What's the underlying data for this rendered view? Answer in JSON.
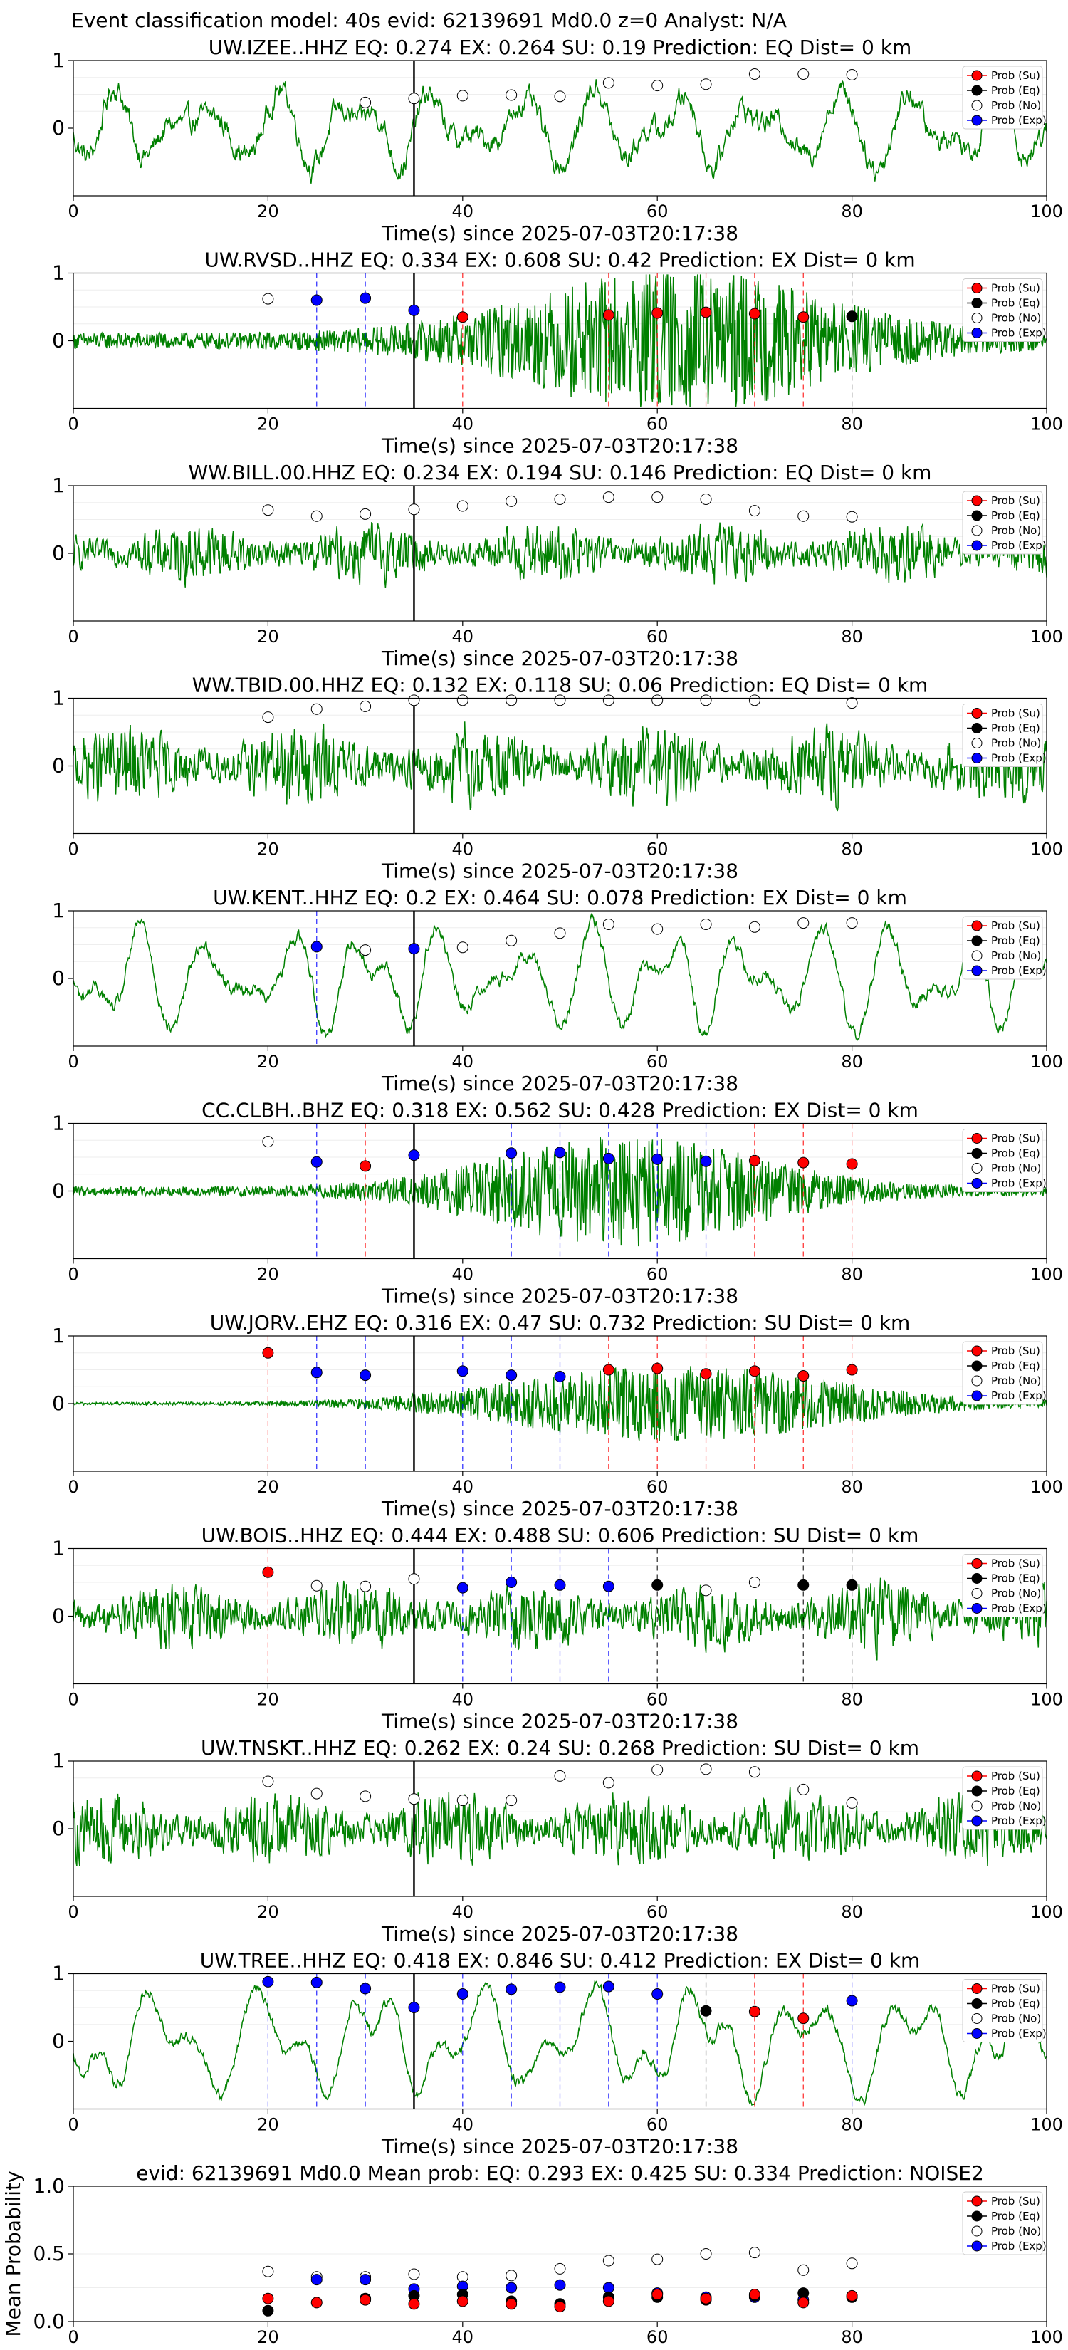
{
  "suptitle": "Event classification model: 40s evid: 62139691 Md0.0 z=0 Analyst: N/A",
  "xlabel": "Time(s) since 2025-07-03T20:17:38",
  "legend": [
    "Prob (Su)",
    "Prob (Eq)",
    "Prob (No)",
    "Prob (Exp)"
  ],
  "colors": {
    "su": "#ff0000",
    "eq": "#000000",
    "no": "#ffffff",
    "exp": "#0000ff",
    "trace": "#008000"
  },
  "chart_data": [
    {
      "type": "line",
      "title": "UW.IZEE..HHZ   EQ: 0.274  EX: 0.264  SU: 0.19    Prediction: EQ    Dist= 0 km",
      "xlim": [
        0,
        100
      ],
      "xticks": [
        0,
        20,
        40,
        60,
        80,
        100
      ],
      "ylim": [
        -1,
        1
      ],
      "yticks": [
        0,
        1
      ],
      "arrival": 35,
      "wave": {
        "style": "osc",
        "amp": 0.55,
        "noise": 0.2
      },
      "points": [
        [
          30,
          "no",
          0.38
        ],
        [
          35,
          "no",
          0.44
        ],
        [
          40,
          "no",
          0.48
        ],
        [
          45,
          "no",
          0.49
        ],
        [
          50,
          "no",
          0.47
        ],
        [
          55,
          "no",
          0.67
        ],
        [
          60,
          "no",
          0.63
        ],
        [
          65,
          "no",
          0.65
        ],
        [
          70,
          "no",
          0.8
        ],
        [
          75,
          "no",
          0.8
        ],
        [
          80,
          "no",
          0.79
        ]
      ]
    },
    {
      "type": "line",
      "title": "UW.RVSD..HHZ   EQ: 0.334  EX: 0.608  SU: 0.42   Prediction: EX    Dist= 0 km",
      "xlim": [
        0,
        100
      ],
      "xticks": [
        0,
        20,
        40,
        60,
        80,
        100
      ],
      "ylim": [
        -1,
        1
      ],
      "yticks": [
        0,
        1
      ],
      "arrival": 35,
      "wave": {
        "style": "burst",
        "amp": 0.12,
        "peak": 62,
        "width": 20,
        "peakAmp": 0.95
      },
      "points": [
        [
          20,
          "no",
          0.62
        ],
        [
          25,
          "exp",
          0.6
        ],
        [
          30,
          "exp",
          0.63
        ],
        [
          35,
          "exp",
          0.45
        ],
        [
          40,
          "su",
          0.35
        ],
        [
          55,
          "su",
          0.38
        ],
        [
          60,
          "su",
          0.41
        ],
        [
          65,
          "su",
          0.42
        ],
        [
          70,
          "su",
          0.4
        ],
        [
          75,
          "su",
          0.35
        ],
        [
          80,
          "eq",
          0.36
        ]
      ]
    },
    {
      "type": "line",
      "title": "WW.BILL.00.HHZ   EQ: 0.234  EX: 0.194  SU: 0.146   Prediction: EQ    Dist= 0 km",
      "xlim": [
        0,
        100
      ],
      "xticks": [
        0,
        20,
        40,
        60,
        80,
        100
      ],
      "ylim": [
        -1,
        1
      ],
      "yticks": [
        0,
        1
      ],
      "arrival": 35,
      "wave": {
        "style": "noise",
        "amp": 0.6
      },
      "points": [
        [
          20,
          "no",
          0.64
        ],
        [
          25,
          "no",
          0.55
        ],
        [
          30,
          "no",
          0.58
        ],
        [
          35,
          "no",
          0.65
        ],
        [
          40,
          "no",
          0.7
        ],
        [
          45,
          "no",
          0.77
        ],
        [
          50,
          "no",
          0.8
        ],
        [
          55,
          "no",
          0.83
        ],
        [
          60,
          "no",
          0.83
        ],
        [
          65,
          "no",
          0.8
        ],
        [
          70,
          "no",
          0.63
        ],
        [
          75,
          "no",
          0.55
        ],
        [
          80,
          "no",
          0.54
        ]
      ]
    },
    {
      "type": "line",
      "title": "WW.TBID.00.HHZ   EQ: 0.132  EX: 0.118  SU: 0.06    Prediction: EQ    Dist= 0 km",
      "xlim": [
        0,
        100
      ],
      "xticks": [
        0,
        20,
        40,
        60,
        80,
        100
      ],
      "ylim": [
        -1,
        1
      ],
      "yticks": [
        0,
        1
      ],
      "arrival": 35,
      "wave": {
        "style": "noise",
        "amp": 0.8
      },
      "points": [
        [
          20,
          "no",
          0.72
        ],
        [
          25,
          "no",
          0.84
        ],
        [
          30,
          "no",
          0.88
        ],
        [
          35,
          "no",
          0.97
        ],
        [
          40,
          "no",
          0.97
        ],
        [
          45,
          "no",
          0.97
        ],
        [
          50,
          "no",
          0.97
        ],
        [
          55,
          "no",
          0.97
        ],
        [
          60,
          "no",
          0.97
        ],
        [
          65,
          "no",
          0.97
        ],
        [
          70,
          "no",
          0.97
        ],
        [
          80,
          "no",
          0.93
        ]
      ]
    },
    {
      "type": "line",
      "title": "UW.KENT..HHZ   EQ: 0.2  EX: 0.464  SU: 0.078   Prediction: EX    Dist= 0 km",
      "xlim": [
        0,
        100
      ],
      "xticks": [
        0,
        20,
        40,
        60,
        80,
        100
      ],
      "ylim": [
        -1,
        1
      ],
      "yticks": [
        0,
        1
      ],
      "arrival": 35,
      "wave": {
        "style": "osc",
        "amp": 0.75,
        "noise": 0.12
      },
      "points": [
        [
          25,
          "exp",
          0.47
        ],
        [
          30,
          "no",
          0.42
        ],
        [
          35,
          "exp",
          0.44
        ],
        [
          40,
          "no",
          0.46
        ],
        [
          45,
          "no",
          0.56
        ],
        [
          50,
          "no",
          0.67
        ],
        [
          55,
          "no",
          0.8
        ],
        [
          60,
          "no",
          0.73
        ],
        [
          65,
          "no",
          0.8
        ],
        [
          70,
          "no",
          0.76
        ],
        [
          75,
          "no",
          0.82
        ],
        [
          80,
          "no",
          0.82
        ]
      ]
    },
    {
      "type": "line",
      "title": "CC.CLBH..BHZ   EQ: 0.318  EX: 0.562  SU: 0.428   Prediction: EX    Dist= 0 km",
      "xlim": [
        0,
        100
      ],
      "xticks": [
        0,
        20,
        40,
        60,
        80,
        100
      ],
      "ylim": [
        -1,
        1
      ],
      "yticks": [
        0,
        1
      ],
      "arrival": 35,
      "wave": {
        "style": "burst",
        "amp": 0.07,
        "peak": 57,
        "width": 18,
        "peakAmp": 0.75
      },
      "points": [
        [
          20,
          "no",
          0.73
        ],
        [
          25,
          "exp",
          0.43
        ],
        [
          30,
          "su",
          0.37
        ],
        [
          35,
          "exp",
          0.53
        ],
        [
          45,
          "exp",
          0.56
        ],
        [
          50,
          "exp",
          0.57
        ],
        [
          55,
          "exp",
          0.48
        ],
        [
          60,
          "exp",
          0.47
        ],
        [
          65,
          "exp",
          0.44
        ],
        [
          70,
          "su",
          0.45
        ],
        [
          75,
          "su",
          0.42
        ],
        [
          80,
          "su",
          0.4
        ]
      ]
    },
    {
      "type": "line",
      "title": "UW.JORV..EHZ   EQ: 0.316  EX: 0.47  SU: 0.732   Prediction: SU    Dist= 0 km",
      "xlim": [
        0,
        100
      ],
      "xticks": [
        0,
        20,
        40,
        60,
        80,
        100
      ],
      "ylim": [
        -1,
        1
      ],
      "yticks": [
        0,
        1
      ],
      "arrival": 35,
      "wave": {
        "style": "burst",
        "amp": 0.02,
        "peak": 62,
        "width": 22,
        "peakAmp": 0.55
      },
      "points": [
        [
          20,
          "su",
          0.75
        ],
        [
          25,
          "exp",
          0.46
        ],
        [
          30,
          "exp",
          0.42
        ],
        [
          40,
          "exp",
          0.48
        ],
        [
          45,
          "exp",
          0.42
        ],
        [
          50,
          "exp",
          0.4
        ],
        [
          55,
          "su",
          0.5
        ],
        [
          60,
          "su",
          0.52
        ],
        [
          65,
          "su",
          0.44
        ],
        [
          70,
          "su",
          0.48
        ],
        [
          75,
          "su",
          0.41
        ],
        [
          80,
          "su",
          0.5
        ]
      ]
    },
    {
      "type": "line",
      "title": "UW.BOIS..HHZ   EQ: 0.444  EX: 0.488  SU: 0.606   Prediction: SU    Dist= 0 km",
      "xlim": [
        0,
        100
      ],
      "xticks": [
        0,
        20,
        40,
        60,
        80,
        100
      ],
      "ylim": [
        -1,
        1
      ],
      "yticks": [
        0,
        1
      ],
      "arrival": 35,
      "wave": {
        "style": "noise",
        "amp": 0.7
      },
      "points": [
        [
          20,
          "su",
          0.65
        ],
        [
          25,
          "no",
          0.45
        ],
        [
          30,
          "no",
          0.44
        ],
        [
          35,
          "no",
          0.55
        ],
        [
          40,
          "exp",
          0.42
        ],
        [
          45,
          "exp",
          0.5
        ],
        [
          50,
          "exp",
          0.46
        ],
        [
          55,
          "exp",
          0.44
        ],
        [
          60,
          "eq",
          0.46
        ],
        [
          65,
          "no",
          0.38
        ],
        [
          70,
          "no",
          0.5
        ],
        [
          75,
          "eq",
          0.46
        ],
        [
          80,
          "eq",
          0.46
        ]
      ]
    },
    {
      "type": "line",
      "title": "UW.TNSKT..HHZ   EQ: 0.262  EX: 0.24  SU: 0.268   Prediction: SU    Dist= 0 km",
      "xlim": [
        0,
        100
      ],
      "xticks": [
        0,
        20,
        40,
        60,
        80,
        100
      ],
      "ylim": [
        -1,
        1
      ],
      "yticks": [
        0,
        1
      ],
      "arrival": 35,
      "wave": {
        "style": "noise",
        "amp": 0.75
      },
      "points": [
        [
          20,
          "no",
          0.7
        ],
        [
          25,
          "no",
          0.52
        ],
        [
          30,
          "no",
          0.48
        ],
        [
          35,
          "no",
          0.44
        ],
        [
          40,
          "no",
          0.42
        ],
        [
          45,
          "no",
          0.42
        ],
        [
          50,
          "no",
          0.78
        ],
        [
          55,
          "no",
          0.68
        ],
        [
          60,
          "no",
          0.87
        ],
        [
          65,
          "no",
          0.88
        ],
        [
          70,
          "no",
          0.84
        ],
        [
          75,
          "no",
          0.58
        ],
        [
          80,
          "no",
          0.38
        ]
      ]
    },
    {
      "type": "line",
      "title": "UW.TREE..HHZ   EQ: 0.418  EX: 0.846  SU: 0.412   Prediction: EX    Dist= 0 km",
      "xlim": [
        0,
        100
      ],
      "xticks": [
        0,
        20,
        40,
        60,
        80,
        100
      ],
      "ylim": [
        -1,
        1
      ],
      "yticks": [
        0,
        1
      ],
      "arrival": 35,
      "wave": {
        "style": "osc",
        "amp": 0.8,
        "noise": 0.1
      },
      "points": [
        [
          20,
          "exp",
          0.88
        ],
        [
          25,
          "exp",
          0.87
        ],
        [
          30,
          "exp",
          0.78
        ],
        [
          35,
          "exp",
          0.5
        ],
        [
          40,
          "exp",
          0.7
        ],
        [
          45,
          "exp",
          0.77
        ],
        [
          50,
          "exp",
          0.8
        ],
        [
          55,
          "exp",
          0.81
        ],
        [
          60,
          "exp",
          0.7
        ],
        [
          65,
          "eq",
          0.45
        ],
        [
          70,
          "su",
          0.44
        ],
        [
          75,
          "su",
          0.34
        ],
        [
          80,
          "exp",
          0.6
        ]
      ]
    },
    {
      "type": "scatter",
      "title": "evid: 62139691  Md0.0   Mean prob:   EQ: 0.293  EX: 0.425  SU: 0.334   Prediction: NOISE2",
      "ylabel": "Mean Probability",
      "xlim": [
        0,
        100
      ],
      "xticks": [
        0,
        20,
        40,
        60,
        80,
        100
      ],
      "ylim": [
        0,
        1
      ],
      "yticks": [
        "0.0",
        "0.5",
        "1.0"
      ],
      "series": [
        {
          "name": "Prob (No)",
          "cls": "no",
          "x": [
            20,
            25,
            30,
            35,
            40,
            45,
            50,
            55,
            60,
            65,
            70,
            75,
            80
          ],
          "y": [
            0.37,
            0.33,
            0.33,
            0.35,
            0.33,
            0.34,
            0.39,
            0.45,
            0.46,
            0.5,
            0.51,
            0.38,
            0.43
          ]
        },
        {
          "name": "Prob (Exp)",
          "cls": "exp",
          "x": [
            25,
            30,
            35,
            40,
            45,
            50,
            55,
            60,
            65,
            70,
            75
          ],
          "y": [
            0.31,
            0.31,
            0.24,
            0.26,
            0.25,
            0.27,
            0.25,
            0.21,
            0.18,
            0.18,
            0.16
          ]
        },
        {
          "name": "Prob (Eq)",
          "cls": "eq",
          "x": [
            20,
            30,
            35,
            40,
            45,
            50,
            55,
            60,
            65,
            70,
            75,
            80
          ],
          "y": [
            0.08,
            0.17,
            0.19,
            0.2,
            0.15,
            0.13,
            0.18,
            0.18,
            0.16,
            0.19,
            0.21,
            0.18
          ]
        },
        {
          "name": "Prob (Su)",
          "cls": "su",
          "x": [
            20,
            25,
            30,
            35,
            40,
            45,
            50,
            55,
            60,
            65,
            70,
            75,
            80
          ],
          "y": [
            0.17,
            0.14,
            0.16,
            0.13,
            0.15,
            0.13,
            0.11,
            0.15,
            0.2,
            0.17,
            0.2,
            0.14,
            0.19
          ]
        }
      ]
    }
  ]
}
